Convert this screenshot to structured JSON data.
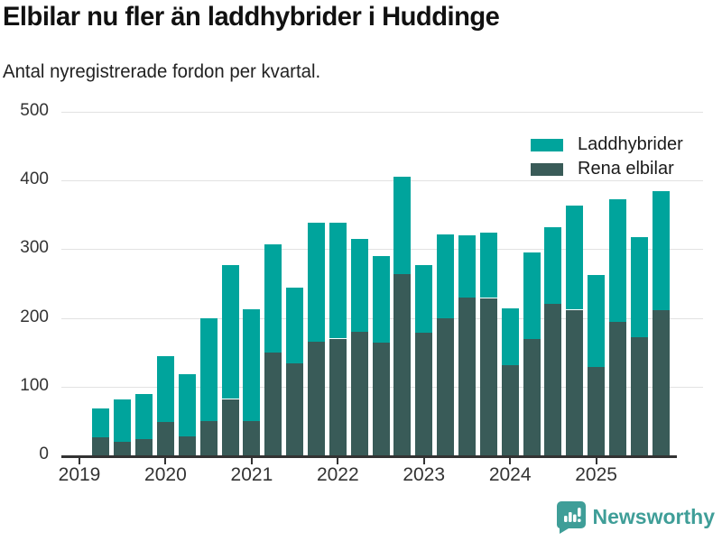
{
  "header": {
    "title": "Elbilar nu fler än laddhybrider i Huddinge",
    "subtitle": "Antal nyregistrerade fordon per kvartal."
  },
  "branding": {
    "logo_text": "Newsworthy",
    "logo_color": "#3f9e98"
  },
  "chart_data": {
    "type": "bar",
    "stacked": true,
    "title": "Elbilar nu fler än laddhybrider i Huddinge",
    "subtitle": "Antal nyregistrerade fordon per kvartal.",
    "categories": [
      "2019 Q2",
      "2019 Q3",
      "2019 Q4",
      "2020 Q1",
      "2020 Q2",
      "2020 Q3",
      "2020 Q4",
      "2021 Q1",
      "2021 Q2",
      "2021 Q3",
      "2021 Q4",
      "2022 Q1",
      "2022 Q2",
      "2022 Q3",
      "2022 Q4",
      "2023 Q1",
      "2023 Q2",
      "2023 Q3",
      "2023 Q4",
      "2024 Q1",
      "2024 Q2",
      "2024 Q3",
      "2024 Q4",
      "2025 Q1",
      "2025 Q2",
      "2025 Q3",
      "2025 Q4"
    ],
    "series": [
      {
        "name": "Laddhybrider",
        "color": "#00a49c",
        "stack_position": "top",
        "values": [
          42,
          61,
          65,
          95,
          90,
          149,
          195,
          163,
          157,
          110,
          173,
          169,
          135,
          126,
          141,
          99,
          121,
          90,
          95,
          83,
          126,
          111,
          152,
          134,
          179,
          145,
          173
        ]
      },
      {
        "name": "Rena elbilar",
        "color": "#395b58",
        "stack_position": "bottom",
        "values": [
          26,
          20,
          24,
          49,
          28,
          50,
          82,
          50,
          150,
          134,
          165,
          170,
          180,
          164,
          264,
          178,
          200,
          230,
          229,
          131,
          169,
          221,
          212,
          129,
          194,
          172,
          211
        ]
      }
    ],
    "stack_totals": [
      68,
      81,
      89,
      144,
      118,
      199,
      277,
      213,
      307,
      244,
      338,
      339,
      315,
      290,
      405,
      277,
      321,
      320,
      324,
      214,
      295,
      332,
      364,
      263,
      373,
      317,
      384
    ],
    "ylim": [
      0,
      500
    ],
    "yticks": [
      0,
      100,
      200,
      300,
      400,
      500
    ],
    "x_year_ticks": [
      "2019",
      "2020",
      "2021",
      "2022",
      "2023",
      "2024",
      "2025"
    ],
    "grid": "horizontal",
    "legend_position": "top-right",
    "gridline_color": "#e2e2e2",
    "axis_color": "#333333"
  }
}
